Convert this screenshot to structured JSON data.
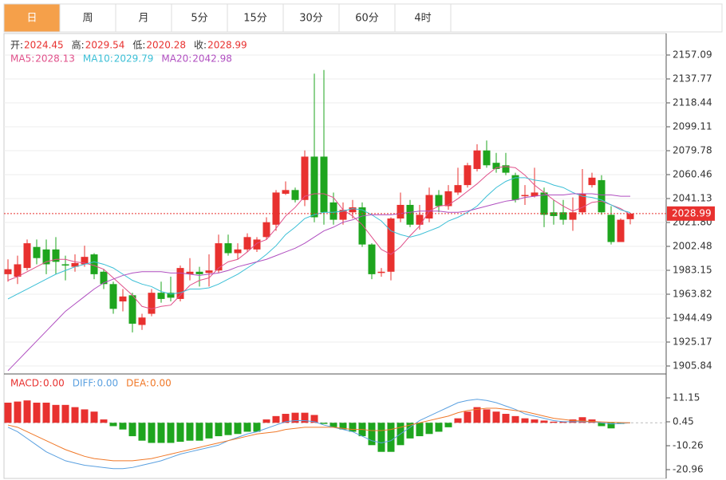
{
  "tabs": {
    "items": [
      "日",
      "周",
      "月",
      "5分",
      "15分",
      "30分",
      "60分",
      "4时"
    ],
    "selected": 0
  },
  "chart_data": [
    {
      "type": "candlestick",
      "legend": [
        {
          "label": "开:",
          "value": 2024.45
        },
        {
          "label": "高:",
          "value": 2029.54
        },
        {
          "label": "低:",
          "value": 2020.28
        },
        {
          "label": "收:",
          "value": 2028.99
        }
      ],
      "open": [
        1980,
        1978,
        1985,
        2002,
        2000,
        2000,
        1988,
        1986,
        1988,
        1996,
        1982,
        1972,
        1958,
        1963,
        1939,
        1948,
        1965,
        1965,
        1960,
        1980,
        1982,
        1981,
        1983,
        2005,
        1997,
        2000,
        2000,
        2010,
        2020,
        2045,
        2048,
        2040,
        2075,
        2075,
        2038,
        2024,
        2030,
        2034,
        2004,
        1981,
        1982,
        2025,
        2036,
        2020,
        2025,
        2044,
        2035,
        2046,
        2052,
        2065,
        2080,
        2070,
        2068,
        2060,
        2043,
        2043,
        2046,
        2030,
        2030,
        2024,
        2030,
        2052,
        2056,
        2028,
        2006,
        2024.45
      ],
      "high": [
        1992,
        1995,
        2008,
        2008,
        2008,
        2010,
        1995,
        1996,
        2003,
        1997,
        1984,
        1974,
        1968,
        1965,
        1948,
        1968,
        1974,
        1978,
        1987,
        1993,
        1986,
        1996,
        2012,
        2012,
        2005,
        2013,
        2010,
        2026,
        2048,
        2055,
        2050,
        2080,
        2142,
        2145,
        2046,
        2038,
        2040,
        2038,
        2005,
        1985,
        2026,
        2046,
        2040,
        2036,
        2050,
        2048,
        2052,
        2066,
        2070,
        2085,
        2088,
        2078,
        2078,
        2062,
        2052,
        2066,
        2050,
        2040,
        2040,
        2042,
        2065,
        2062,
        2060,
        2035,
        2025,
        2029.54
      ],
      "low": [
        1974,
        1972,
        1983,
        1988,
        1980,
        1980,
        1975,
        1982,
        1986,
        1976,
        1968,
        1948,
        1950,
        1933,
        1935,
        1946,
        1957,
        1958,
        1958,
        1975,
        1970,
        1970,
        1981,
        1995,
        1992,
        1998,
        1998,
        2008,
        2015,
        2044,
        2038,
        2035,
        2022,
        2020,
        2020,
        2020,
        2025,
        2002,
        1976,
        1978,
        1975,
        2022,
        2018,
        2016,
        2022,
        2030,
        2032,
        2044,
        2050,
        2063,
        2066,
        2062,
        2060,
        2038,
        2036,
        2042,
        2018,
        2020,
        2020,
        2015,
        2028,
        2050,
        2028,
        2004,
        2006,
        2020.28
      ],
      "close": [
        1984,
        1988,
        2005,
        1993,
        1988,
        1990,
        1987,
        1989,
        1994,
        1980,
        1972,
        1952,
        1962,
        1940,
        1945,
        1965,
        1960,
        1961,
        1985,
        1982,
        1980,
        1983,
        2005,
        1997,
        2000,
        2010,
        2008,
        2022,
        2046,
        2048,
        2040,
        2075,
        2026,
        2030,
        2024,
        2032,
        2034,
        2004,
        1980,
        1982,
        2025,
        2036,
        2020,
        2028,
        2044,
        2035,
        2047,
        2052,
        2068,
        2080,
        2068,
        2065,
        2062,
        2040,
        2044,
        2046,
        2028,
        2027,
        2024,
        2030,
        2045,
        2058,
        2030,
        2006,
        2024,
        2028.99
      ],
      "up_color": "#e8312f",
      "down_color": "#1ea51e",
      "series": [
        {
          "name": "MA5:",
          "color": "#e0508a",
          "last": 2028.13,
          "values": [
            1975,
            1978,
            1982,
            1986,
            1990,
            1992,
            1992,
            1990,
            1989,
            1987,
            1984,
            1977,
            1970,
            1963,
            1954,
            1952,
            1954,
            1955,
            1963,
            1971,
            1975,
            1977,
            1985,
            1990,
            1992,
            1998,
            2005,
            2008,
            2017,
            2027,
            2034,
            2043,
            2045,
            2045,
            2042,
            2032,
            2027,
            2020,
            2010,
            2000,
            1996,
            2002,
            2011,
            2019,
            2031,
            2035,
            2036,
            2041,
            2047,
            2053,
            2060,
            2066,
            2067,
            2066,
            2060,
            2052,
            2046,
            2040,
            2035,
            2031,
            2034,
            2038,
            2039,
            2036,
            2033,
            2028.13
          ]
        },
        {
          "name": "MA10:",
          "color": "#3bbfd6",
          "last": 2029.79,
          "values": [
            1960,
            1964,
            1968,
            1972,
            1976,
            1980,
            1983,
            1986,
            1988,
            1990,
            1988,
            1985,
            1980,
            1975,
            1972,
            1970,
            1966,
            1964,
            1965,
            1968,
            1968,
            1969,
            1972,
            1976,
            1980,
            1985,
            1990,
            1996,
            2003,
            2012,
            2018,
            2025,
            2028,
            2030,
            2030,
            2031,
            2033,
            2032,
            2028,
            2023,
            2015,
            2012,
            2010,
            2012,
            2015,
            2018,
            2023,
            2026,
            2030,
            2035,
            2043,
            2050,
            2055,
            2058,
            2058,
            2056,
            2055,
            2052,
            2050,
            2046,
            2043,
            2042,
            2040,
            2036,
            2032,
            2029.79
          ]
        },
        {
          "name": "MA20:",
          "color": "#b04fc0",
          "last": 2042.98,
          "values": [
            1902,
            1910,
            1918,
            1926,
            1934,
            1942,
            1950,
            1956,
            1962,
            1968,
            1973,
            1976,
            1979,
            1981,
            1982,
            1982,
            1982,
            1981,
            1981,
            1980,
            1979,
            1980,
            1981,
            1983,
            1986,
            1988,
            1990,
            1992,
            1995,
            1998,
            2001,
            2005,
            2010,
            2015,
            2018,
            2022,
            2024,
            2027,
            2028,
            2028,
            2028,
            2029,
            2030,
            2031,
            2031,
            2031,
            2030,
            2030,
            2031,
            2033,
            2035,
            2037,
            2039,
            2040,
            2042,
            2043,
            2044,
            2044,
            2044,
            2045,
            2045,
            2045,
            2044,
            2044,
            2043,
            2042.98
          ]
        }
      ],
      "ylim": [
        1900.04,
        2174.49
      ],
      "yticks": [
        2157.09,
        2137.77,
        2118.44,
        2099.11,
        2079.78,
        2060.46,
        2041.13,
        {
          "value": 2021.8,
          "label": "2021.80"
        },
        2002.48,
        1983.15,
        1963.82,
        1944.49,
        1925.17,
        1905.84
      ]
    },
    {
      "type": "macd",
      "histogram": {
        "name": "MACD:",
        "current": {
          "value": 0,
          "label": "0.00"
        },
        "values": [
          9,
          9.5,
          10,
          9,
          9,
          8,
          8,
          7,
          6,
          5,
          1.5,
          -1.5,
          -3,
          -6,
          -8,
          -9,
          -9,
          -9,
          -8.5,
          -8,
          -8,
          -7,
          -6,
          -5.5,
          -5,
          -4,
          -4,
          1.5,
          3,
          4,
          4.5,
          4.5,
          3.5,
          -0.5,
          -2,
          -3,
          -4,
          -6,
          -10,
          -13,
          -13,
          -10,
          -7,
          -6,
          -5,
          -4,
          -2,
          2,
          5,
          7,
          6,
          5,
          4,
          3,
          2,
          1.5,
          1,
          0.5,
          0.5,
          1.5,
          2.5,
          1.5,
          -1.5,
          -2.5,
          -0.5,
          0
        ]
      },
      "series": [
        {
          "name": "DIFF:",
          "color": "#5aa0e0",
          "current": {
            "value": 0,
            "label": "0.00"
          },
          "values": [
            -2,
            -4,
            -7,
            -10,
            -13,
            -15,
            -17,
            -18,
            -19,
            -19.5,
            -20,
            -20.5,
            -20.5,
            -20,
            -19,
            -18,
            -17,
            -15.5,
            -14,
            -13,
            -12,
            -11,
            -10,
            -8,
            -6.5,
            -5,
            -4,
            -2.5,
            -1,
            0.5,
            1,
            1,
            0.5,
            -1,
            -2,
            -3,
            -4,
            -6,
            -8,
            -9,
            -8,
            -5,
            -2,
            1,
            3,
            5,
            7,
            9,
            10,
            10.5,
            10,
            9,
            7.5,
            6,
            4,
            3,
            2,
            1,
            0.5,
            0.5,
            0.5,
            0.5,
            0,
            -0.5,
            -0.3,
            0
          ]
        },
        {
          "name": "DEA:",
          "color": "#f07828",
          "current": {
            "value": 0,
            "label": "0.00"
          },
          "values": [
            -1,
            -2,
            -4,
            -6,
            -8,
            -10,
            -12,
            -13.5,
            -15,
            -16,
            -16.5,
            -17,
            -17,
            -17,
            -16.5,
            -16,
            -15,
            -14,
            -13,
            -12,
            -11,
            -10,
            -9,
            -8,
            -7,
            -6,
            -5,
            -4.5,
            -4,
            -3,
            -2.5,
            -2,
            -2,
            -2,
            -2,
            -2.5,
            -3,
            -3,
            -3.5,
            -3.5,
            -3,
            -2,
            -1,
            0,
            1,
            2,
            3,
            4.5,
            5.5,
            6,
            6.5,
            6.5,
            6,
            5.5,
            5,
            4,
            3,
            2,
            1.5,
            1,
            0.8,
            0.6,
            0.4,
            0.2,
            0.1,
            0
          ]
        }
      ],
      "ylim": [
        -24.88,
        21.49
      ],
      "yticks": [
        11.15,
        0.45,
        -10.26,
        -20.96
      ]
    }
  ]
}
